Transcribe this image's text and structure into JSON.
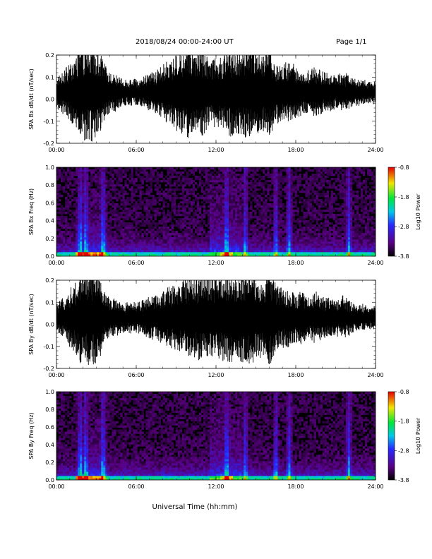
{
  "header": {
    "title": "2018/08/24  00:00-24:00 UT",
    "page": "Page 1/1"
  },
  "xaxis_label": "Universal Time (hh:mm)",
  "chart_data": [
    {
      "type": "line",
      "ylabel": "SPA Bx dB/dt (nT/sec)",
      "xlim": [
        "00:00",
        "24:00"
      ],
      "xticks": [
        "00:00",
        "06:00",
        "12:00",
        "18:00",
        "24:00"
      ],
      "ylim": [
        -0.2,
        0.2
      ],
      "yticks": [
        "-0.2",
        "-0.1",
        "0.0",
        "0.1",
        "0.2"
      ],
      "envelope_hours": [
        0,
        0.5,
        1,
        1.5,
        1.8,
        2.2,
        2.8,
        3.3,
        3.8,
        4.5,
        5,
        5.5,
        6,
        6.5,
        7,
        7.5,
        8,
        8.5,
        9,
        9.5,
        10,
        10.5,
        11,
        11.5,
        12,
        12.5,
        13,
        13.5,
        14,
        14.5,
        15,
        15.5,
        16,
        16.5,
        17,
        17.5,
        18,
        18.5,
        19,
        19.5,
        20,
        20.5,
        21,
        21.5,
        22,
        22.5,
        23,
        23.5,
        24
      ],
      "envelope_amplitude": [
        0.07,
        0.1,
        0.13,
        0.16,
        0.22,
        0.22,
        0.22,
        0.18,
        0.11,
        0.08,
        0.06,
        0.06,
        0.06,
        0.07,
        0.09,
        0.1,
        0.13,
        0.14,
        0.17,
        0.2,
        0.22,
        0.2,
        0.2,
        0.16,
        0.16,
        0.16,
        0.2,
        0.2,
        0.2,
        0.22,
        0.2,
        0.18,
        0.2,
        0.14,
        0.13,
        0.14,
        0.12,
        0.1,
        0.1,
        0.12,
        0.1,
        0.09,
        0.08,
        0.09,
        0.08,
        0.06,
        0.06,
        0.05,
        0.05
      ]
    },
    {
      "type": "heatmap",
      "ylabel": "SPA Bx Freq (Hz)",
      "xlim": [
        "00:00",
        "24:00"
      ],
      "xticks": [
        "00:00",
        "06:00",
        "12:00",
        "18:00",
        "24:00"
      ],
      "ylim": [
        0.0,
        1.0
      ],
      "yticks": [
        "0.0",
        "0.2",
        "0.4",
        "0.6",
        "0.8",
        "1.0"
      ],
      "colorbar_label": "Log10 Power",
      "colorbar_range": [
        -3.8,
        -0.8
      ],
      "colorbar_ticks": [
        "-0.8",
        "-1.8",
        "-2.8",
        "-3.8"
      ],
      "bright_bands_hours": [
        1.8,
        2.2,
        3.5,
        12.8,
        14.2,
        16.5,
        17.5,
        22
      ]
    },
    {
      "type": "line",
      "ylabel": "SPA By dB/dt (nT/sec)",
      "xlim": [
        "00:00",
        "24:00"
      ],
      "xticks": [
        "00:00",
        "06:00",
        "12:00",
        "18:00",
        "24:00"
      ],
      "ylim": [
        -0.2,
        0.2
      ],
      "yticks": [
        "-0.2",
        "-0.1",
        "0.0",
        "0.1",
        "0.2"
      ],
      "envelope_hours": [
        0,
        0.5,
        1,
        1.5,
        1.8,
        2.2,
        2.8,
        3.3,
        3.8,
        4.5,
        5,
        5.5,
        6,
        6.5,
        7,
        7.5,
        8,
        8.5,
        9,
        9.5,
        10,
        10.5,
        11,
        11.5,
        12,
        12.5,
        13,
        13.5,
        14,
        14.5,
        15,
        15.5,
        16,
        16.5,
        17,
        17.5,
        18,
        18.5,
        19,
        19.5,
        20,
        20.5,
        21,
        21.5,
        22,
        22.5,
        23,
        23.5,
        24
      ],
      "envelope_amplitude": [
        0.06,
        0.09,
        0.13,
        0.17,
        0.22,
        0.22,
        0.22,
        0.17,
        0.1,
        0.08,
        0.07,
        0.07,
        0.07,
        0.08,
        0.1,
        0.1,
        0.12,
        0.14,
        0.15,
        0.17,
        0.18,
        0.19,
        0.2,
        0.18,
        0.18,
        0.2,
        0.21,
        0.2,
        0.2,
        0.22,
        0.2,
        0.17,
        0.22,
        0.16,
        0.14,
        0.13,
        0.12,
        0.12,
        0.1,
        0.12,
        0.1,
        0.09,
        0.08,
        0.1,
        0.08,
        0.06,
        0.06,
        0.05,
        0.05
      ]
    },
    {
      "type": "heatmap",
      "ylabel": "SPA By Freq (Hz)",
      "xlim": [
        "00:00",
        "24:00"
      ],
      "xticks": [
        "00:00",
        "06:00",
        "12:00",
        "18:00",
        "24:00"
      ],
      "ylim": [
        0.0,
        1.0
      ],
      "yticks": [
        "0.0",
        "0.2",
        "0.4",
        "0.6",
        "0.8",
        "1.0"
      ],
      "colorbar_label": "Log10 Power",
      "colorbar_range": [
        -3.8,
        -0.8
      ],
      "colorbar_ticks": [
        "-0.8",
        "-1.8",
        "-2.8",
        "-3.8"
      ],
      "bright_bands_hours": [
        1.8,
        2.2,
        3.5,
        12.8,
        14.2,
        16.5,
        17.5,
        22
      ]
    }
  ]
}
